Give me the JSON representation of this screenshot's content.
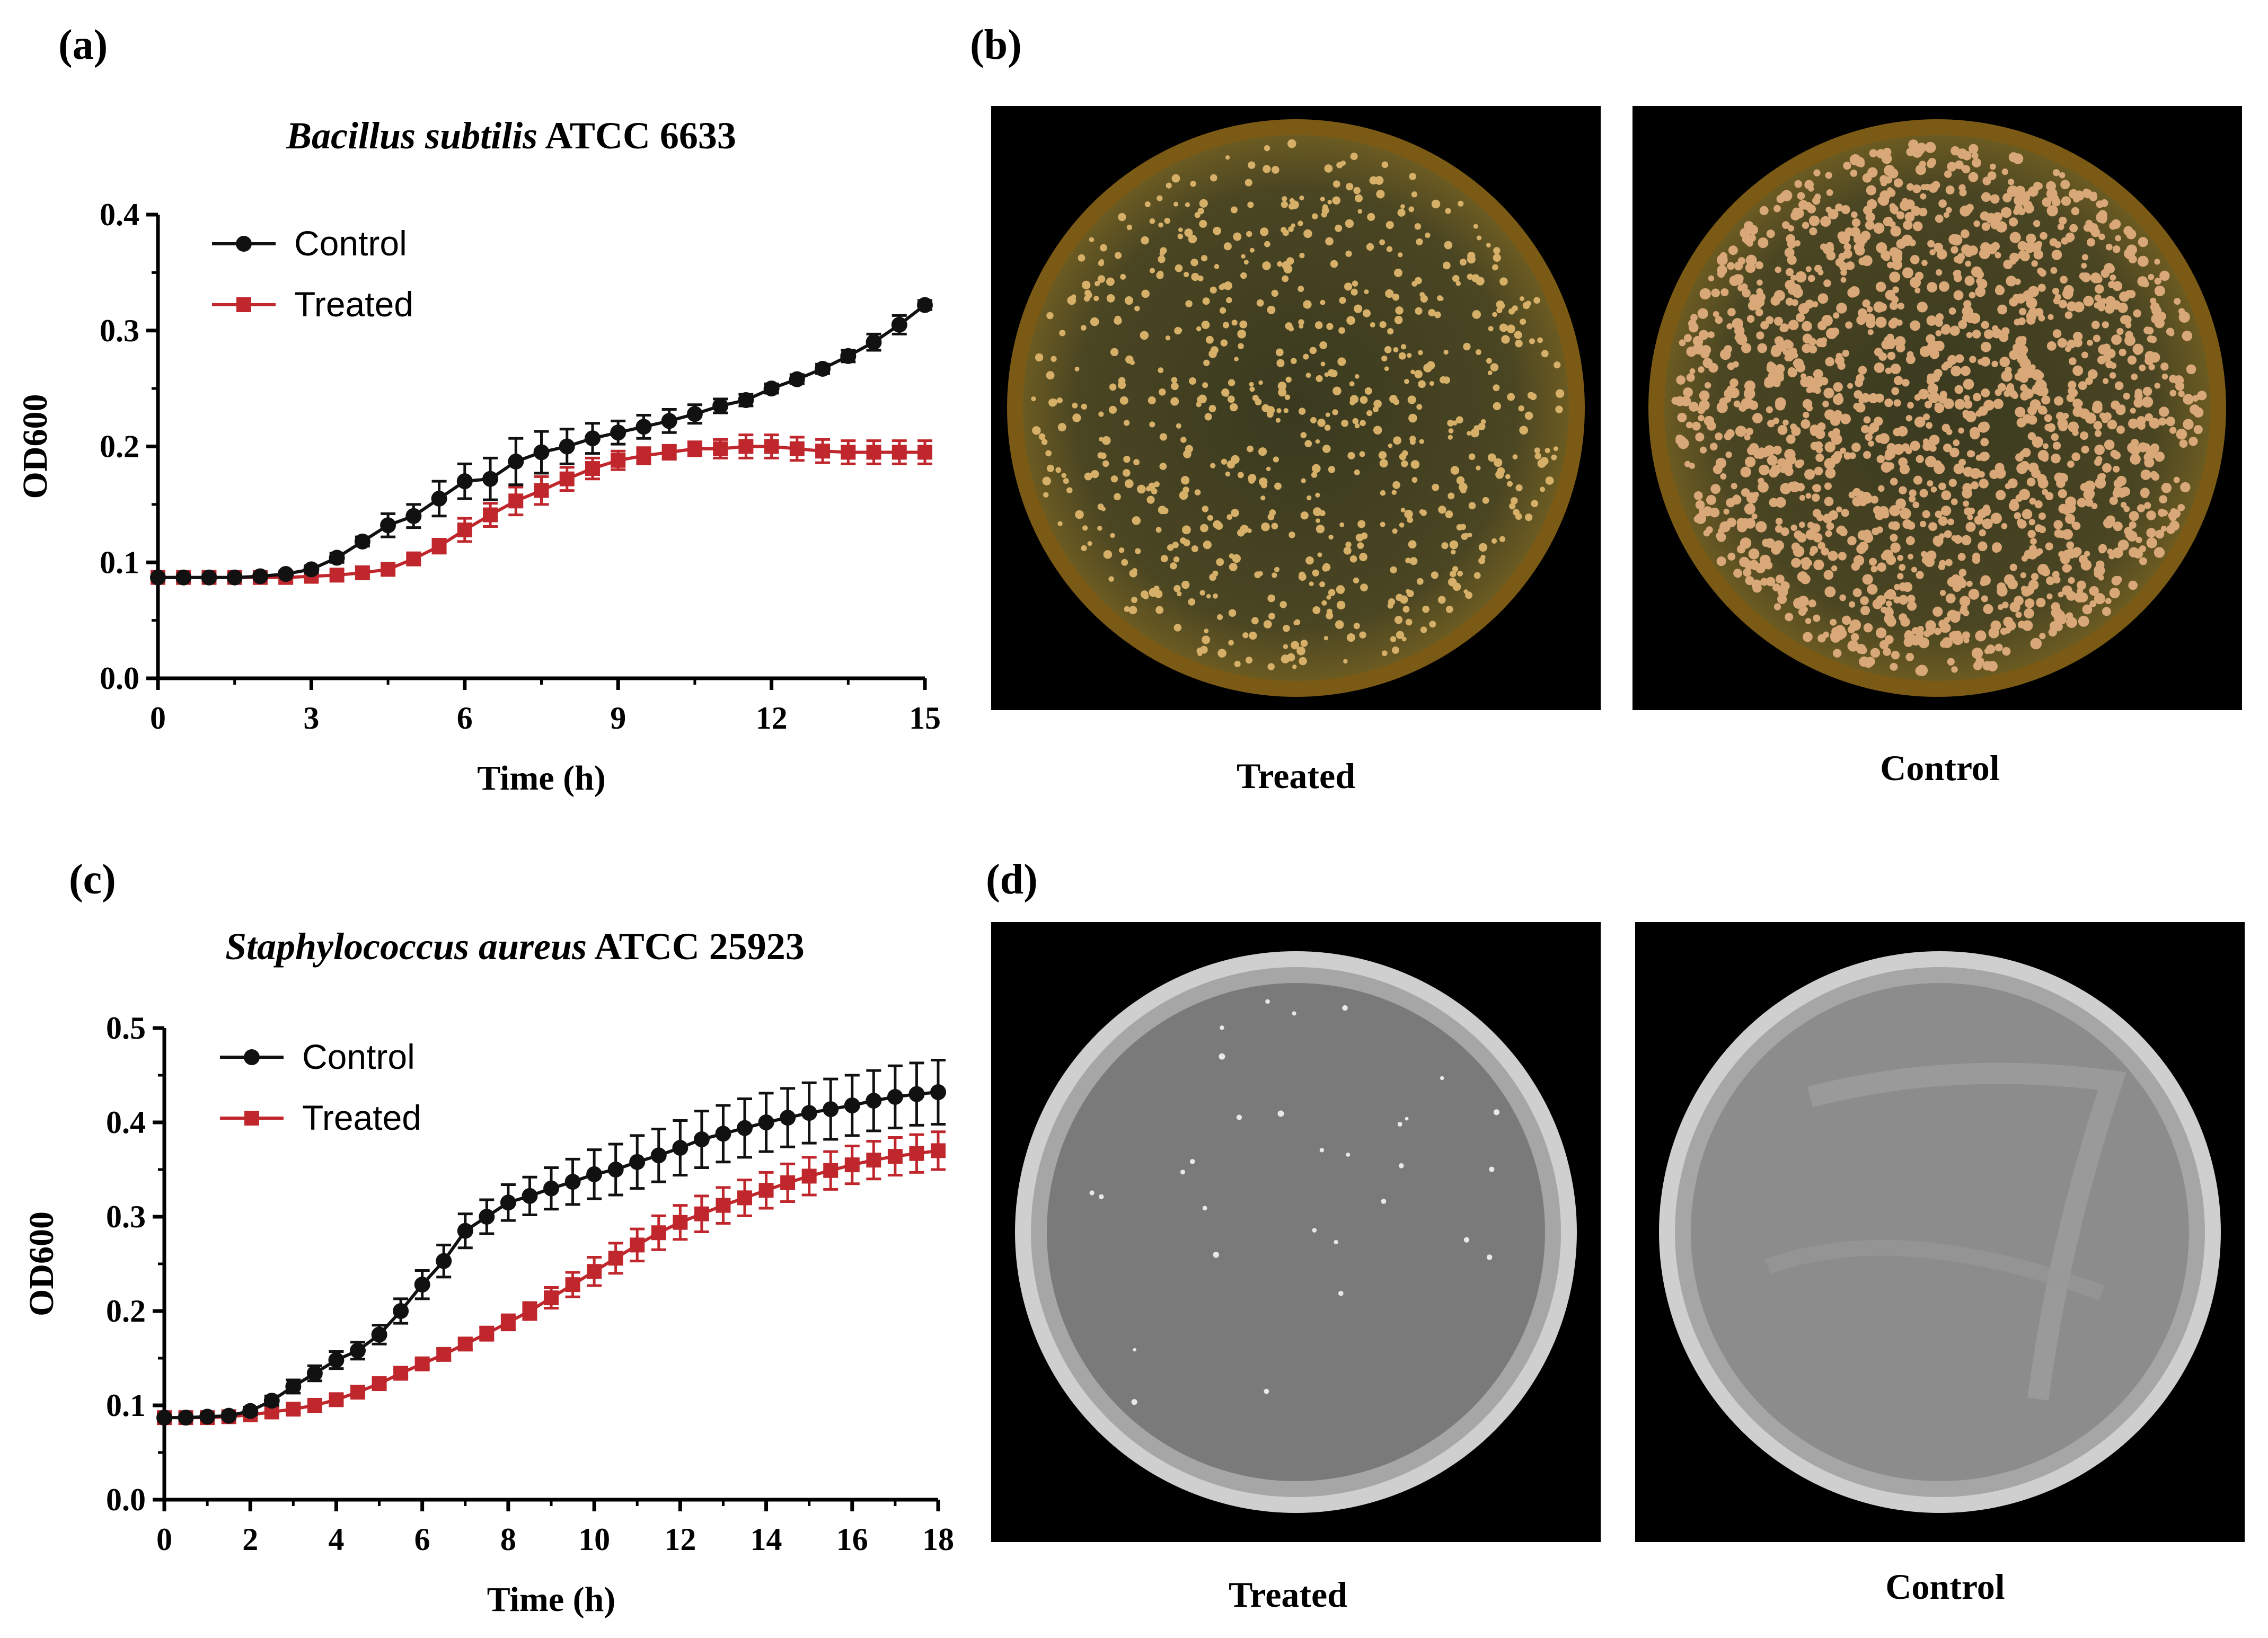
{
  "panels": {
    "a": "(a)",
    "b": "(b)",
    "c": "(c)",
    "d": "(d)"
  },
  "chart_titles": {
    "a_italic": "Bacillus subtilis",
    "a_rest": "ATCC 6633",
    "c_italic": "Staphylococcus aureus",
    "c_rest": "ATCC 25923"
  },
  "photos": {
    "b_left_caption": "Treated",
    "b_right_caption": "Control",
    "d_left_caption": "Treated",
    "d_right_caption": "Control"
  },
  "colors": {
    "control": "#111111",
    "treated": "#c0272d",
    "plate_b": "#3f3a1c",
    "plate_d": "#6e6e6e"
  },
  "chart_data": [
    {
      "id": "a",
      "type": "line",
      "title": "Bacillus subtilis ATCC 6633",
      "xlabel": "Time (h)",
      "ylabel": "OD600",
      "xlim": [
        0,
        15
      ],
      "ylim": [
        0,
        0.4
      ],
      "xticks": [
        0,
        3,
        6,
        9,
        12,
        15
      ],
      "yticks": [
        "0.0",
        "0.1",
        "0.2",
        "0.3",
        "0.4"
      ],
      "legend": [
        "Control",
        "Treated"
      ],
      "legend_position": "top-left",
      "x": [
        0,
        0.5,
        1,
        1.5,
        2,
        2.5,
        3,
        3.5,
        4,
        4.5,
        5,
        5.5,
        6,
        6.5,
        7,
        7.5,
        8,
        8.5,
        9,
        9.5,
        10,
        10.5,
        11,
        11.5,
        12,
        12.5,
        13,
        13.5,
        14,
        14.5,
        15
      ],
      "series": [
        {
          "name": "Control",
          "marker": "circle",
          "values": [
            0.087,
            0.087,
            0.087,
            0.087,
            0.088,
            0.09,
            0.094,
            0.104,
            0.118,
            0.132,
            0.14,
            0.155,
            0.17,
            0.172,
            0.187,
            0.195,
            0.2,
            0.207,
            0.212,
            0.217,
            0.222,
            0.228,
            0.235,
            0.24,
            0.25,
            0.258,
            0.267,
            0.278,
            0.29,
            0.305,
            0.322
          ],
          "errors": [
            0.002,
            0.002,
            0.002,
            0.002,
            0.002,
            0.002,
            0.003,
            0.004,
            0.004,
            0.01,
            0.01,
            0.015,
            0.015,
            0.018,
            0.02,
            0.018,
            0.015,
            0.013,
            0.01,
            0.01,
            0.01,
            0.008,
            0.006,
            0.005,
            0.004,
            0.004,
            0.004,
            0.005,
            0.007,
            0.008,
            0.004
          ]
        },
        {
          "name": "Treated",
          "marker": "square",
          "values": [
            0.087,
            0.087,
            0.087,
            0.087,
            0.087,
            0.087,
            0.088,
            0.089,
            0.091,
            0.094,
            0.103,
            0.114,
            0.128,
            0.141,
            0.153,
            0.162,
            0.172,
            0.181,
            0.188,
            0.192,
            0.195,
            0.198,
            0.198,
            0.2,
            0.2,
            0.198,
            0.196,
            0.195,
            0.195,
            0.195,
            0.195
          ],
          "errors": [
            0.002,
            0.002,
            0.002,
            0.002,
            0.002,
            0.002,
            0.002,
            0.002,
            0.002,
            0.003,
            0.004,
            0.006,
            0.01,
            0.01,
            0.012,
            0.012,
            0.01,
            0.009,
            0.008,
            0.007,
            0.006,
            0.006,
            0.008,
            0.01,
            0.01,
            0.01,
            0.01,
            0.01,
            0.01,
            0.01,
            0.01
          ]
        }
      ]
    },
    {
      "id": "c",
      "type": "line",
      "title": "Staphylococcus aureus ATCC 25923",
      "xlabel": "Time (h)",
      "ylabel": "OD600",
      "xlim": [
        0,
        18
      ],
      "ylim": [
        0,
        0.5
      ],
      "xticks": [
        0,
        2,
        4,
        6,
        8,
        10,
        12,
        14,
        16,
        18
      ],
      "yticks": [
        "0.0",
        "0.1",
        "0.2",
        "0.3",
        "0.4",
        "0.5"
      ],
      "legend": [
        "Control",
        "Treated"
      ],
      "legend_position": "top-left",
      "x": [
        0,
        0.5,
        1,
        1.5,
        2,
        2.5,
        3,
        3.5,
        4,
        4.5,
        5,
        5.5,
        6,
        6.5,
        7,
        7.5,
        8,
        8.5,
        9,
        9.5,
        10,
        10.5,
        11,
        11.5,
        12,
        12.5,
        13,
        13.5,
        14,
        14.5,
        15,
        15.5,
        16,
        16.5,
        17,
        17.5,
        18
      ],
      "series": [
        {
          "name": "Control",
          "marker": "circle",
          "values": [
            0.087,
            0.087,
            0.088,
            0.089,
            0.094,
            0.105,
            0.12,
            0.134,
            0.148,
            0.158,
            0.175,
            0.2,
            0.228,
            0.253,
            0.285,
            0.3,
            0.315,
            0.322,
            0.33,
            0.337,
            0.345,
            0.35,
            0.358,
            0.365,
            0.373,
            0.382,
            0.388,
            0.394,
            0.4,
            0.405,
            0.41,
            0.414,
            0.418,
            0.423,
            0.427,
            0.43,
            0.432
          ],
          "errors": [
            0.002,
            0.002,
            0.002,
            0.003,
            0.004,
            0.005,
            0.007,
            0.008,
            0.009,
            0.009,
            0.01,
            0.013,
            0.015,
            0.017,
            0.018,
            0.018,
            0.019,
            0.02,
            0.022,
            0.024,
            0.026,
            0.027,
            0.028,
            0.028,
            0.029,
            0.03,
            0.03,
            0.031,
            0.031,
            0.031,
            0.032,
            0.032,
            0.032,
            0.032,
            0.033,
            0.033,
            0.034
          ]
        },
        {
          "name": "Treated",
          "marker": "square",
          "values": [
            0.087,
            0.087,
            0.087,
            0.088,
            0.09,
            0.093,
            0.096,
            0.1,
            0.106,
            0.114,
            0.123,
            0.134,
            0.144,
            0.154,
            0.165,
            0.176,
            0.188,
            0.2,
            0.214,
            0.228,
            0.242,
            0.256,
            0.27,
            0.283,
            0.294,
            0.303,
            0.312,
            0.32,
            0.328,
            0.336,
            0.343,
            0.349,
            0.355,
            0.36,
            0.364,
            0.367,
            0.37
          ],
          "errors": [
            0.002,
            0.002,
            0.002,
            0.002,
            0.003,
            0.003,
            0.004,
            0.004,
            0.004,
            0.004,
            0.004,
            0.004,
            0.005,
            0.006,
            0.006,
            0.007,
            0.008,
            0.009,
            0.011,
            0.013,
            0.015,
            0.016,
            0.017,
            0.018,
            0.018,
            0.019,
            0.019,
            0.019,
            0.019,
            0.02,
            0.02,
            0.02,
            0.02,
            0.02,
            0.02,
            0.02,
            0.02
          ]
        }
      ]
    }
  ]
}
